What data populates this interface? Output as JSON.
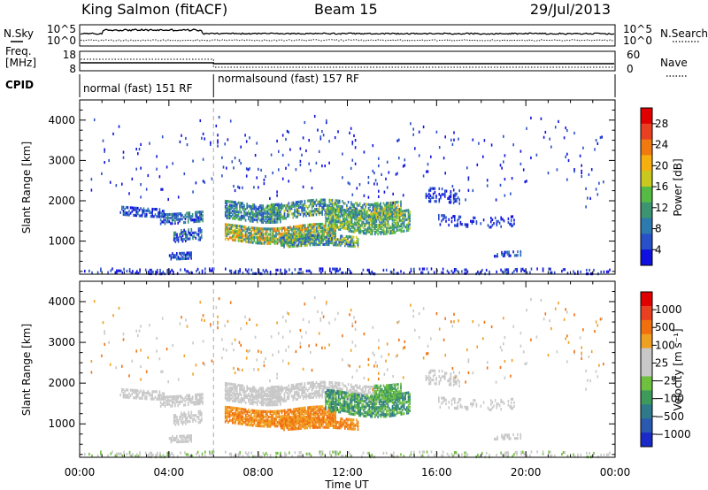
{
  "header": {
    "station": "King Salmon (fitACF)",
    "beam": "Beam 15",
    "date": "29/Jul/2013"
  },
  "top_panels": {
    "nsky_label": "N.Sky",
    "nsearch_label": "N.Search",
    "freq_label": "Freq.",
    "freq_unit": "[MHz]",
    "nave_label": "Nave",
    "cpid_label": "CPID",
    "count_ticks_left": [
      "10^5",
      "10^0"
    ],
    "count_ticks_right": [
      "10^5",
      "10^0"
    ],
    "freq_ticks": [
      "18",
      "8"
    ],
    "nave_ticks": [
      "60",
      "0"
    ],
    "cpid_segments": [
      {
        "label": "normal (fast) 151 RF",
        "start_hour": 0,
        "end_hour": 6.0
      },
      {
        "label": "normalsound (fast) 157 RF",
        "start_hour": 6.0,
        "end_hour": 24
      }
    ]
  },
  "chart_data": [
    {
      "type": "heatmap",
      "ylabel": "Slant Range [km]",
      "xlabel": "Time UT",
      "x_ticks": [
        "00:00",
        "04:00",
        "08:00",
        "12:00",
        "16:00",
        "20:00",
        "00:00"
      ],
      "y_ticks": [
        "1000",
        "2000",
        "3000",
        "4000"
      ],
      "xlim_hours": [
        0,
        24
      ],
      "ylim_km": [
        180,
        4500
      ],
      "colorbar": {
        "label": "Power [dB]",
        "ticks": [
          "4",
          "8",
          "12",
          "16",
          "20",
          "24",
          "28"
        ],
        "colors": [
          "#1010e0",
          "#2850c8",
          "#2d7ab0",
          "#3d9470",
          "#55bb45",
          "#c8c820",
          "#f5b010",
          "#f07a10",
          "#e84020",
          "#e00000"
        ]
      }
    },
    {
      "type": "heatmap",
      "ylabel": "Slant Range [km]",
      "xlabel": "Time UT",
      "x_ticks": [
        "00:00",
        "04:00",
        "08:00",
        "12:00",
        "16:00",
        "20:00",
        "00:00"
      ],
      "y_ticks": [
        "1000",
        "2000",
        "3000",
        "4000"
      ],
      "xlim_hours": [
        0,
        24
      ],
      "ylim_km": [
        180,
        4500
      ],
      "colorbar": {
        "label": "Velocity [m s⁻¹]",
        "ticks": [
          "1000",
          "500",
          "100",
          "25",
          "−25",
          "−100",
          "−500",
          "−1000"
        ],
        "colors": [
          "#1a2ac8",
          "#2a5ab0",
          "#2f7a8a",
          "#3e9a5a",
          "#70c040",
          "#c8c8c8",
          "#c8c8c8",
          "#f0a020",
          "#f07010",
          "#e84020",
          "#e00000"
        ]
      }
    }
  ]
}
